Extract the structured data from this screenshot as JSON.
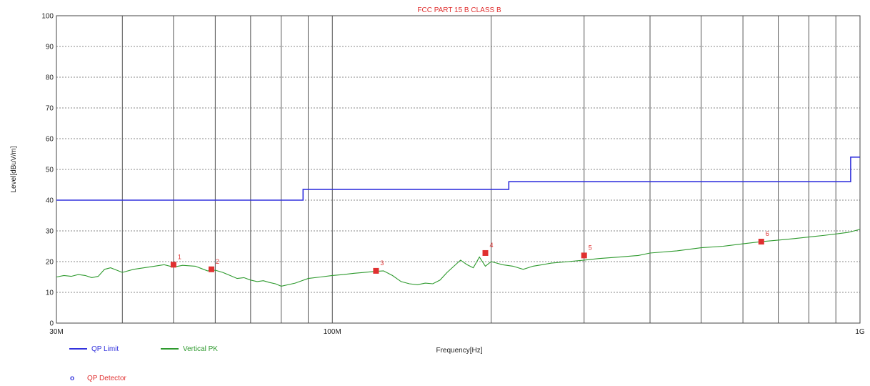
{
  "chart_data": {
    "type": "line",
    "title": "FCC PART 15 B CLASS B",
    "xlabel": "Frequency[Hz]",
    "ylabel": "Level[dBuV/m]",
    "x_scale": "log",
    "xlim": [
      30,
      1000
    ],
    "ylim": [
      0,
      100
    ],
    "yticks": [
      0,
      10,
      20,
      30,
      40,
      50,
      60,
      70,
      80,
      90,
      100
    ],
    "xtick_labels": [
      {
        "value": 30,
        "label": "30M"
      },
      {
        "value": 100,
        "label": "100M"
      },
      {
        "value": 1000,
        "label": "1G"
      }
    ],
    "x_minor_gridlines": [
      40,
      50,
      60,
      70,
      80,
      90,
      200,
      300,
      400,
      500,
      600,
      700,
      800,
      900
    ],
    "grid": true,
    "colors": {
      "limit": "#3333dd",
      "pk": "#2e9a2e",
      "marker": "#e03030",
      "title": "#e03030"
    },
    "series": [
      {
        "name": "QP Limit",
        "color": "#3333dd",
        "x": [
          30,
          88,
          88,
          216,
          216,
          960,
          960,
          1000
        ],
        "y": [
          40,
          40,
          43.5,
          43.5,
          46,
          46,
          54,
          54
        ]
      },
      {
        "name": "Vertical PK",
        "color": "#2e9a2e",
        "x": [
          30,
          31,
          32,
          33,
          34,
          35,
          36,
          37,
          38,
          40,
          42,
          44,
          46,
          48,
          50,
          52,
          55,
          57,
          58,
          60,
          62,
          64,
          66,
          68,
          70,
          72,
          74,
          76,
          78,
          80,
          85,
          90,
          95,
          100,
          105,
          110,
          115,
          120,
          125,
          130,
          135,
          140,
          145,
          150,
          155,
          160,
          165,
          170,
          175,
          180,
          185,
          190,
          195,
          200,
          205,
          210,
          220,
          230,
          240,
          250,
          260,
          280,
          300,
          320,
          350,
          380,
          400,
          450,
          500,
          550,
          600,
          650,
          700,
          750,
          800,
          850,
          900,
          950,
          1000
        ],
        "y": [
          15,
          15.5,
          15.2,
          15.8,
          15.5,
          14.8,
          15.2,
          17.5,
          18,
          16.5,
          17.5,
          18,
          18.5,
          19,
          18.2,
          18.8,
          18.5,
          17.5,
          17,
          17.2,
          16.5,
          15.5,
          14.5,
          14.8,
          14,
          13.5,
          13.8,
          13.2,
          12.8,
          12,
          13,
          14.5,
          15,
          15.5,
          15.8,
          16.2,
          16.5,
          16.8,
          17,
          15.5,
          13.5,
          12.8,
          12.5,
          13,
          12.8,
          14,
          16.5,
          18.5,
          20.5,
          19,
          18,
          21.5,
          18.5,
          20,
          19.5,
          19,
          18.5,
          17.5,
          18.5,
          19,
          19.5,
          20,
          20.5,
          21,
          21.5,
          22,
          22.8,
          23.5,
          24.5,
          25,
          25.8,
          26.5,
          27,
          27.5,
          28,
          28.5,
          29,
          29.5,
          30.5
        ]
      }
    ],
    "markers": [
      {
        "label": "1",
        "x": 50.0,
        "y": 19.0
      },
      {
        "label": "2",
        "x": 59.0,
        "y": 17.5
      },
      {
        "label": "3",
        "x": 121.0,
        "y": 17.0
      },
      {
        "label": "4",
        "x": 195.0,
        "y": 22.8
      },
      {
        "label": "5",
        "x": 300.0,
        "y": 22.0
      },
      {
        "label": "6",
        "x": 650.0,
        "y": 26.5
      }
    ]
  },
  "legend": {
    "items": [
      {
        "label": "QP Limit",
        "color": "#3333dd"
      },
      {
        "label": "Vertical PK",
        "color": "#2e9a2e"
      }
    ],
    "detector": {
      "label": "QP Detector",
      "symbol": "o"
    }
  }
}
